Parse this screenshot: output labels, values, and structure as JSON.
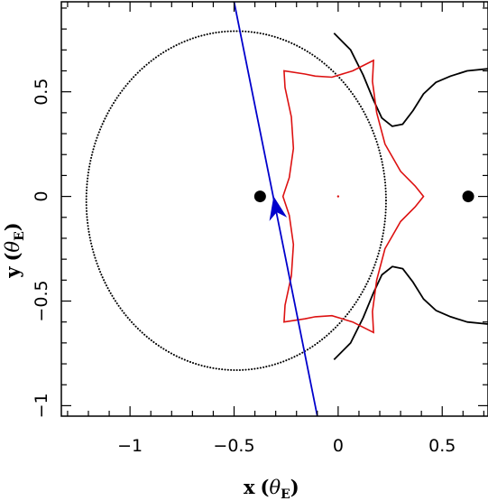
{
  "chart_data": {
    "type": "line",
    "title": "",
    "xlabel": {
      "main": "x",
      "unit_symbol": "θ",
      "unit_sub": "E"
    },
    "ylabel": {
      "main": "y",
      "unit_symbol": "θ",
      "unit_sub": "E"
    },
    "xlim": [
      -1.33,
      0.72
    ],
    "ylim": [
      -1.05,
      0.93
    ],
    "xticks": [
      -1,
      -0.5,
      0,
      0.5
    ],
    "xtick_labels": [
      "−1",
      "−0.5",
      "0",
      "0.5"
    ],
    "yticks": [
      -1,
      -0.5,
      0,
      0.5
    ],
    "ytick_labels": [
      "−1",
      "−0.5",
      "0",
      "0.5"
    ],
    "x_minor_step": 0.1,
    "y_minor_step": 0.1,
    "grid": false,
    "colors": {
      "caustic": "#dd1111",
      "trajectory": "#0000cc",
      "critical": "#000000",
      "lens": "#000000"
    },
    "lens_positions": [
      {
        "x": -0.375,
        "y": 0.0
      },
      {
        "x": 0.625,
        "y": 0.0
      }
    ],
    "center_marker": {
      "x": 0.0,
      "y": 0.0
    },
    "source_trajectory": {
      "start": {
        "x": -0.5,
        "y": 0.93
      },
      "end": {
        "x": -0.1,
        "y": -1.05
      },
      "arrow_at": {
        "x": -0.3,
        "y": -0.05
      }
    },
    "critical_curve_circle": {
      "cx": -0.49,
      "cy": -0.02,
      "rx": 0.72,
      "ry": 0.81
    },
    "critical_curve_upper_branch": [
      [
        -0.02,
        0.78
      ],
      [
        0.06,
        0.7
      ],
      [
        0.12,
        0.58
      ],
      [
        0.17,
        0.46
      ],
      [
        0.21,
        0.375
      ],
      [
        0.26,
        0.335
      ],
      [
        0.31,
        0.345
      ],
      [
        0.36,
        0.41
      ],
      [
        0.41,
        0.49
      ],
      [
        0.47,
        0.545
      ],
      [
        0.54,
        0.575
      ],
      [
        0.62,
        0.6
      ],
      [
        0.72,
        0.61
      ]
    ],
    "critical_curve_lower_branch": [
      [
        -0.02,
        -0.78
      ],
      [
        0.06,
        -0.7
      ],
      [
        0.12,
        -0.58
      ],
      [
        0.17,
        -0.46
      ],
      [
        0.21,
        -0.375
      ],
      [
        0.26,
        -0.335
      ],
      [
        0.31,
        -0.345
      ],
      [
        0.36,
        -0.41
      ],
      [
        0.41,
        -0.49
      ],
      [
        0.47,
        -0.545
      ],
      [
        0.54,
        -0.575
      ],
      [
        0.62,
        -0.6
      ],
      [
        0.72,
        -0.61
      ]
    ],
    "caustic": [
      [
        0.17,
        0.65
      ],
      [
        0.07,
        0.6
      ],
      [
        -0.03,
        0.57
      ],
      [
        -0.11,
        0.575
      ],
      [
        -0.16,
        0.585
      ],
      [
        -0.26,
        0.6
      ],
      [
        -0.255,
        0.52
      ],
      [
        -0.225,
        0.38
      ],
      [
        -0.215,
        0.23
      ],
      [
        -0.235,
        0.09
      ],
      [
        -0.265,
        0.0
      ],
      [
        -0.235,
        -0.09
      ],
      [
        -0.215,
        -0.23
      ],
      [
        -0.225,
        -0.38
      ],
      [
        -0.255,
        -0.52
      ],
      [
        -0.26,
        -0.6
      ],
      [
        -0.16,
        -0.585
      ],
      [
        -0.11,
        -0.575
      ],
      [
        -0.03,
        -0.57
      ],
      [
        0.07,
        -0.6
      ],
      [
        0.17,
        -0.65
      ],
      [
        0.165,
        -0.55
      ],
      [
        0.185,
        -0.4
      ],
      [
        0.225,
        -0.25
      ],
      [
        0.3,
        -0.12
      ],
      [
        0.37,
        -0.05
      ],
      [
        0.41,
        0.0
      ],
      [
        0.37,
        0.05
      ],
      [
        0.3,
        0.12
      ],
      [
        0.225,
        0.25
      ],
      [
        0.185,
        0.4
      ],
      [
        0.165,
        0.55
      ],
      [
        0.17,
        0.65
      ]
    ]
  }
}
